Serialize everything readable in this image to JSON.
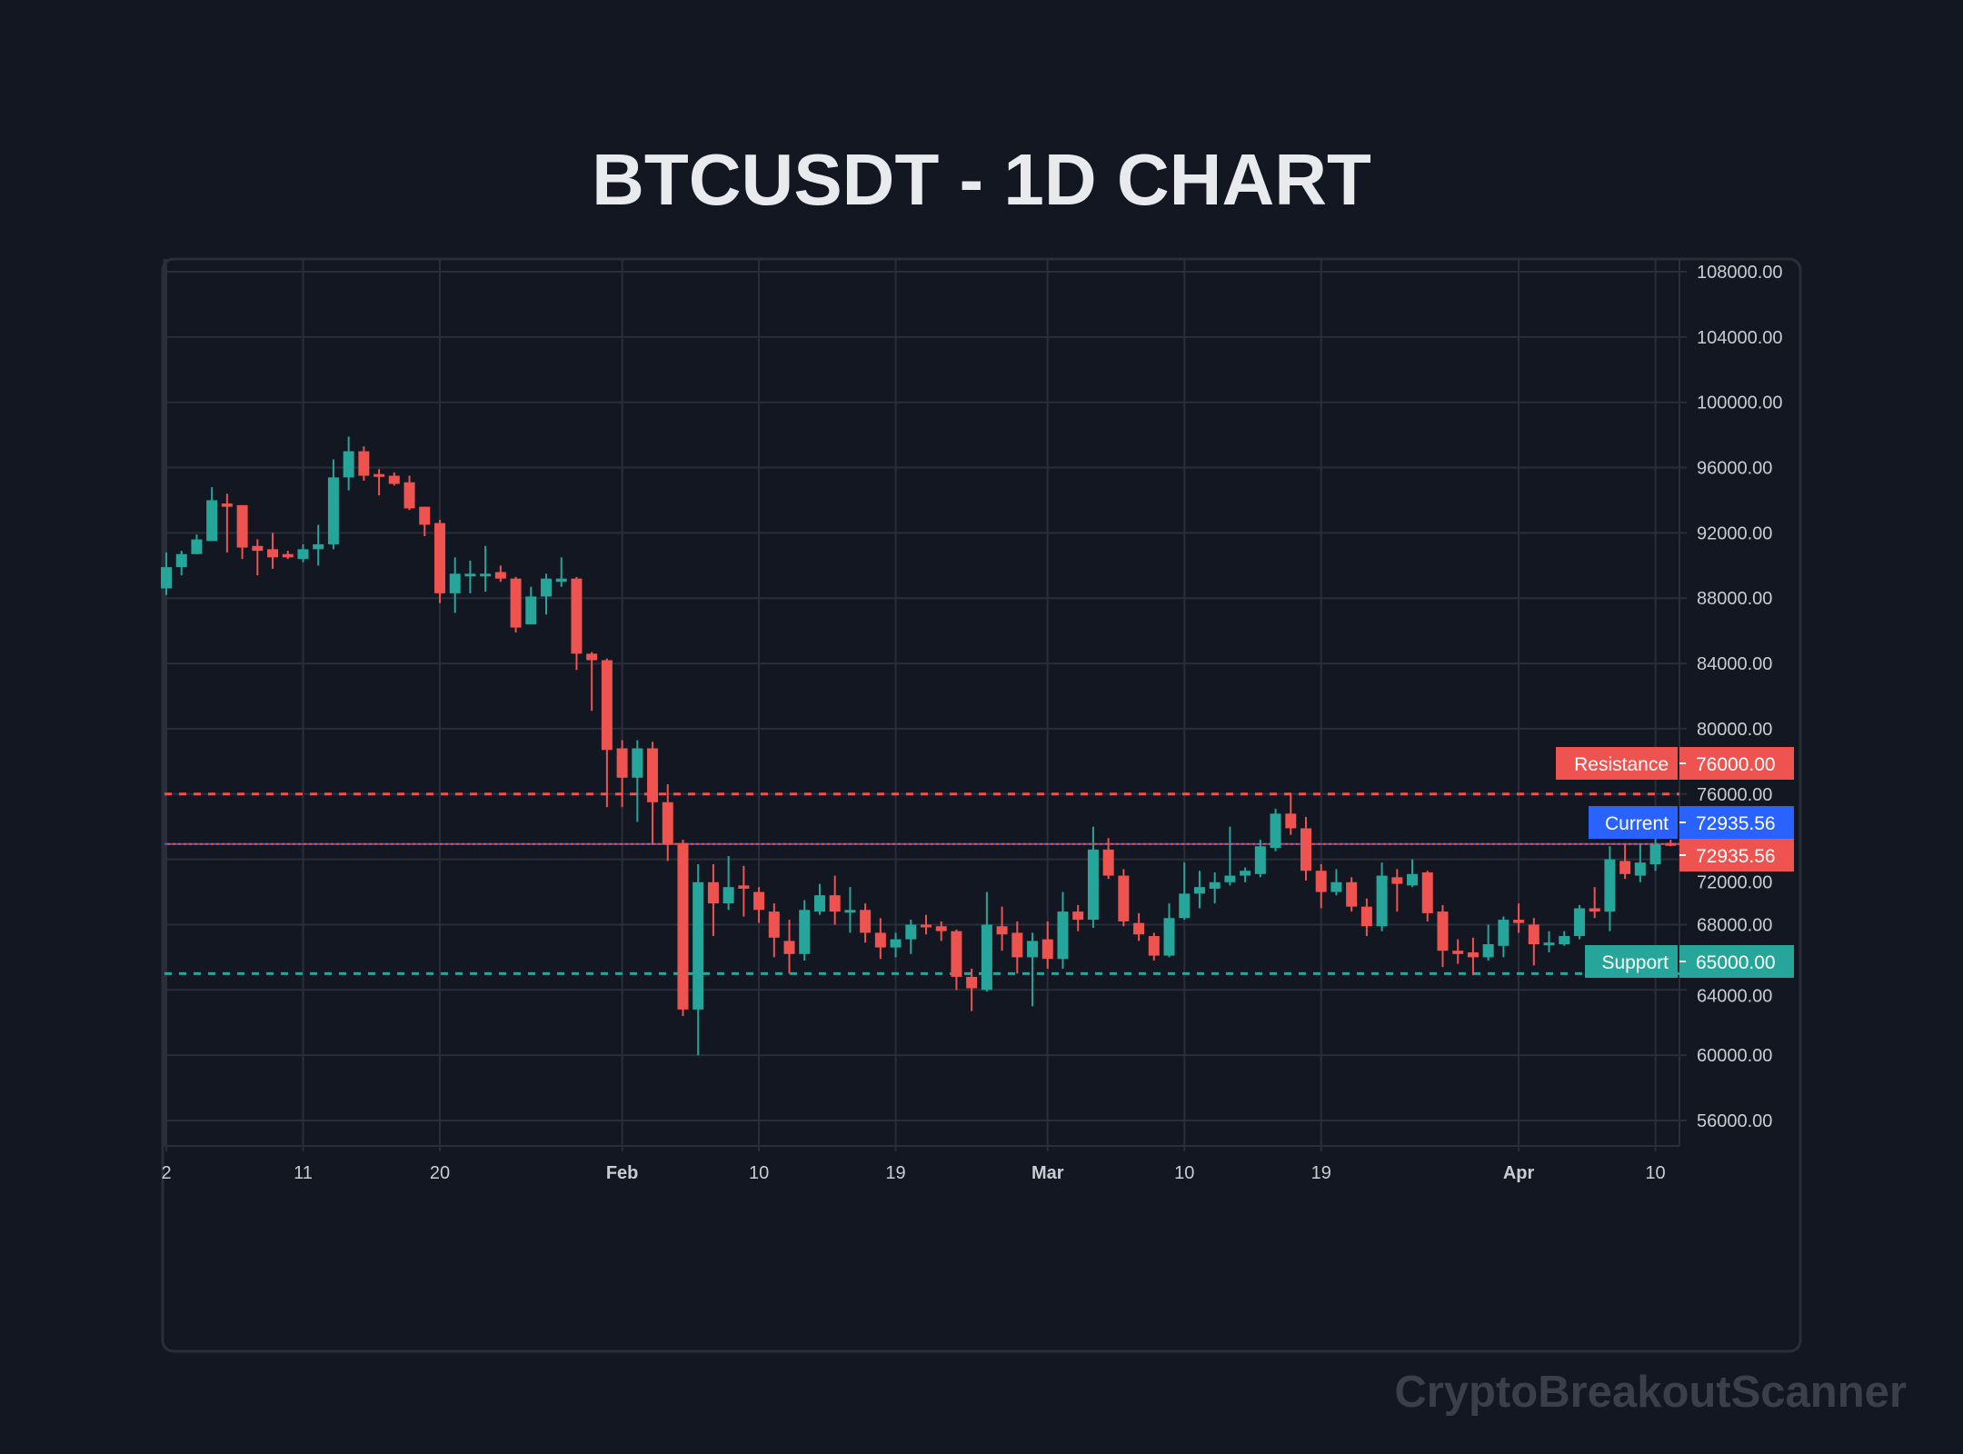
{
  "title": "BTCUSDT - 1D CHART",
  "watermark": "CryptoBreakoutScanner",
  "colors": {
    "background": "#131722",
    "up": "#26a69a",
    "down": "#ef5350",
    "current": "#2962ff",
    "grid": "#2a2e39",
    "text": "#c9ccd1"
  },
  "chart_data": {
    "type": "candlestick",
    "title": "BTCUSDT - 1D CHART",
    "xlabel": "",
    "ylabel": "",
    "ylim": [
      56000,
      108000
    ],
    "grid": true,
    "y_ticks": [
      "108000.00",
      "104000.00",
      "100000.00",
      "96000.00",
      "92000.00",
      "88000.00",
      "84000.00",
      "80000.00",
      "76000.00",
      "72000.00",
      "68000.00",
      "64000.00",
      "60000.00",
      "56000.00"
    ],
    "y_tick_values": [
      108000,
      104000,
      100000,
      96000,
      92000,
      88000,
      84000,
      80000,
      76000,
      72000,
      68000,
      64000,
      60000,
      56000
    ],
    "x_ticks": [
      {
        "label": "2",
        "day": 0,
        "bold": false
      },
      {
        "label": "11",
        "day": 9,
        "bold": false
      },
      {
        "label": "20",
        "day": 18,
        "bold": false
      },
      {
        "label": "Feb",
        "day": 30,
        "bold": true
      },
      {
        "label": "10",
        "day": 39,
        "bold": false
      },
      {
        "label": "19",
        "day": 48,
        "bold": false
      },
      {
        "label": "Mar",
        "day": 58,
        "bold": true
      },
      {
        "label": "10",
        "day": 67,
        "bold": false
      },
      {
        "label": "19",
        "day": 76,
        "bold": false
      },
      {
        "label": "Apr",
        "day": 89,
        "bold": true
      },
      {
        "label": "10",
        "day": 98,
        "bold": false
      }
    ],
    "candles_ohlc": [
      [
        88600,
        90800,
        88200,
        89900
      ],
      [
        89900,
        90900,
        89400,
        90700
      ],
      [
        90700,
        91900,
        90700,
        91600
      ],
      [
        91500,
        94800,
        91500,
        94000
      ],
      [
        93800,
        94400,
        90800,
        93600
      ],
      [
        93700,
        93700,
        90400,
        91100
      ],
      [
        91200,
        91600,
        89400,
        90900
      ],
      [
        91000,
        92000,
        89800,
        90500
      ],
      [
        90700,
        90900,
        90400,
        90500
      ],
      [
        90400,
        91300,
        90200,
        91000
      ],
      [
        91000,
        92500,
        90000,
        91300
      ],
      [
        91300,
        96500,
        91000,
        95400
      ],
      [
        95400,
        97900,
        94600,
        97000
      ],
      [
        97000,
        97300,
        95200,
        95500
      ],
      [
        95600,
        95900,
        94300,
        95500
      ],
      [
        95500,
        95700,
        94900,
        95000
      ],
      [
        95100,
        95500,
        93400,
        93500
      ],
      [
        93600,
        93600,
        91800,
        92500
      ],
      [
        92600,
        92800,
        87700,
        88300
      ],
      [
        88300,
        90500,
        87100,
        89500
      ],
      [
        89400,
        90300,
        88300,
        89500
      ],
      [
        89400,
        91200,
        88400,
        89500
      ],
      [
        89600,
        90000,
        89000,
        89200
      ],
      [
        89200,
        89300,
        85900,
        86200
      ],
      [
        86400,
        88700,
        86400,
        88100
      ],
      [
        88100,
        89500,
        87000,
        89200
      ],
      [
        89000,
        90500,
        88700,
        89200
      ],
      [
        89200,
        89300,
        83600,
        84600
      ],
      [
        84600,
        84700,
        81100,
        84200
      ],
      [
        84200,
        84300,
        75200,
        78700
      ],
      [
        78800,
        79300,
        75200,
        77000
      ],
      [
        77000,
        79300,
        74300,
        78800
      ],
      [
        78800,
        79200,
        72900,
        75500
      ],
      [
        75500,
        76600,
        71900,
        72900
      ],
      [
        73000,
        73200,
        62400,
        62800
      ],
      [
        62800,
        71700,
        60000,
        70600
      ],
      [
        70600,
        71700,
        67300,
        69300
      ],
      [
        69300,
        72200,
        68900,
        70300
      ],
      [
        70400,
        71600,
        68500,
        70200
      ],
      [
        70000,
        70300,
        68100,
        68900
      ],
      [
        68800,
        69300,
        66000,
        67200
      ],
      [
        67000,
        68300,
        65000,
        66200
      ],
      [
        66200,
        69500,
        65800,
        68900
      ],
      [
        68800,
        70500,
        68600,
        69800
      ],
      [
        69800,
        71000,
        68000,
        68800
      ],
      [
        68900,
        70300,
        67500,
        68900
      ],
      [
        68900,
        69300,
        66900,
        67500
      ],
      [
        67500,
        68400,
        65900,
        66600
      ],
      [
        66600,
        67500,
        66000,
        67100
      ],
      [
        67100,
        68300,
        66200,
        68000
      ],
      [
        68000,
        68600,
        67400,
        67900
      ],
      [
        67900,
        68200,
        67000,
        67600
      ],
      [
        67600,
        67700,
        64000,
        64800
      ],
      [
        64800,
        65300,
        62700,
        64100
      ],
      [
        64000,
        70000,
        63900,
        68000
      ],
      [
        67900,
        69100,
        66400,
        67400
      ],
      [
        67500,
        68200,
        65000,
        66000
      ],
      [
        66000,
        67500,
        63000,
        67000
      ],
      [
        67100,
        68200,
        65300,
        65900
      ],
      [
        65900,
        70000,
        65300,
        68800
      ],
      [
        68800,
        69200,
        67600,
        68300
      ],
      [
        68300,
        74000,
        67800,
        72600
      ],
      [
        72600,
        73300,
        70800,
        71000
      ],
      [
        71000,
        71400,
        67900,
        68200
      ],
      [
        68100,
        68700,
        67000,
        67400
      ],
      [
        67300,
        67500,
        65800,
        66100
      ],
      [
        66100,
        69300,
        66000,
        68400
      ],
      [
        68400,
        71800,
        68300,
        69900
      ],
      [
        69900,
        71300,
        69000,
        70300
      ],
      [
        70200,
        71200,
        69300,
        70600
      ],
      [
        70600,
        74000,
        70400,
        71000
      ],
      [
        71000,
        71500,
        70600,
        71300
      ],
      [
        71100,
        73200,
        70900,
        72800
      ],
      [
        72700,
        75100,
        72500,
        74800
      ],
      [
        74800,
        76000,
        73500,
        73900
      ],
      [
        73900,
        74600,
        70700,
        71300
      ],
      [
        71300,
        71700,
        69000,
        70000
      ],
      [
        70000,
        71400,
        69800,
        70600
      ],
      [
        70600,
        70900,
        68800,
        69100
      ],
      [
        69100,
        69600,
        67300,
        67900
      ],
      [
        67900,
        71800,
        67600,
        71000
      ],
      [
        70900,
        71400,
        68800,
        70500
      ],
      [
        70400,
        72000,
        70300,
        71100
      ],
      [
        71200,
        71300,
        68200,
        68700
      ],
      [
        68800,
        69200,
        65400,
        66400
      ],
      [
        66400,
        67100,
        65600,
        66200
      ],
      [
        66300,
        67200,
        64900,
        66000
      ],
      [
        66000,
        68000,
        65800,
        66800
      ],
      [
        66700,
        68500,
        66000,
        68300
      ],
      [
        68300,
        69300,
        67500,
        68100
      ],
      [
        68000,
        68400,
        65500,
        66800
      ],
      [
        66800,
        67600,
        66300,
        66900
      ],
      [
        66800,
        67600,
        66700,
        67300
      ],
      [
        67300,
        69200,
        67100,
        69000
      ],
      [
        69000,
        70300,
        68400,
        68800
      ],
      [
        68800,
        72800,
        67600,
        72000
      ],
      [
        71900,
        72900,
        70800,
        71100
      ],
      [
        71000,
        72900,
        70600,
        71800
      ],
      [
        71700,
        73500,
        71300,
        72900
      ],
      [
        73000,
        73200,
        72800,
        72935.56
      ]
    ],
    "levels": {
      "resistance": {
        "label": "Resistance",
        "value": 76000,
        "text": "76000.00"
      },
      "current": {
        "label": "Current",
        "value": 72935.56,
        "text": "72935.56"
      },
      "last_price": {
        "value": 72935.56,
        "text": "72935.56"
      },
      "support": {
        "label": "Support",
        "value": 65000,
        "text": "65000.00"
      }
    }
  }
}
